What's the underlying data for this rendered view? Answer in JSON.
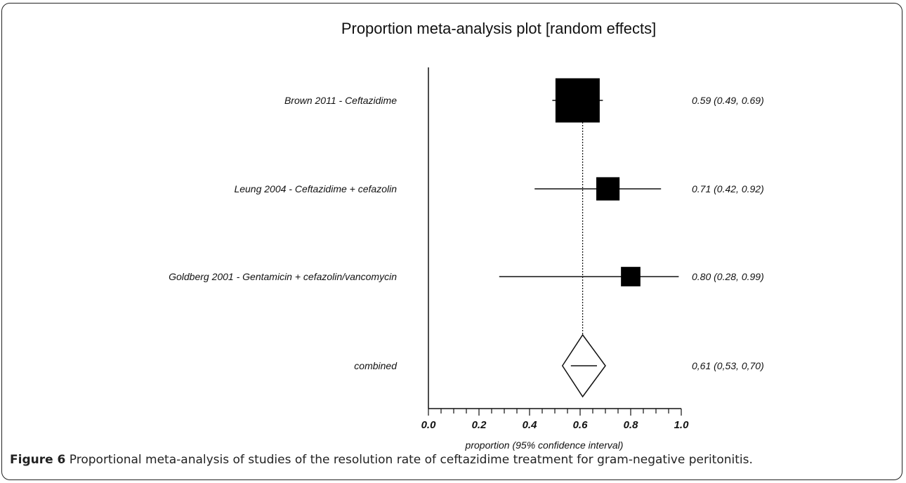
{
  "chart_data": {
    "type": "forest",
    "title": "Proportion meta-analysis plot [random effects]",
    "xlabel": "proportion (95% confidence interval)",
    "xlim": [
      0.0,
      1.0
    ],
    "x_ticks": [
      "0.0",
      "0.2",
      "0.4",
      "0.6",
      "0.8",
      "1.0"
    ],
    "reference_line": 0.61,
    "studies": [
      {
        "label": "Brown 2011 - Ceftazidime",
        "estimate": 0.59,
        "lower": 0.49,
        "upper": 0.69,
        "weight": 1.0,
        "ci_text": "0.59 (0.49, 0.69)"
      },
      {
        "label": "Leung 2004 - Ceftazidime + cefazolin",
        "estimate": 0.71,
        "lower": 0.42,
        "upper": 0.92,
        "weight": 0.2,
        "ci_text": "0.71 (0.42, 0.92)"
      },
      {
        "label": "Goldberg 2001 - Gentamicin + cefazolin/vancomycin",
        "estimate": 0.8,
        "lower": 0.28,
        "upper": 0.99,
        "weight": 0.12,
        "ci_text": "0.80 (0.28, 0.99)"
      }
    ],
    "combined": {
      "label": "combined",
      "estimate": 0.61,
      "lower": 0.53,
      "upper": 0.7,
      "ci_text": "0,61 (0,53, 0,70)"
    }
  },
  "caption": {
    "figure_label": "Figure 6",
    "text": "Proportional meta-analysis of studies of the resolution rate of ceftazidime treatment for gram-negative peritonitis."
  }
}
